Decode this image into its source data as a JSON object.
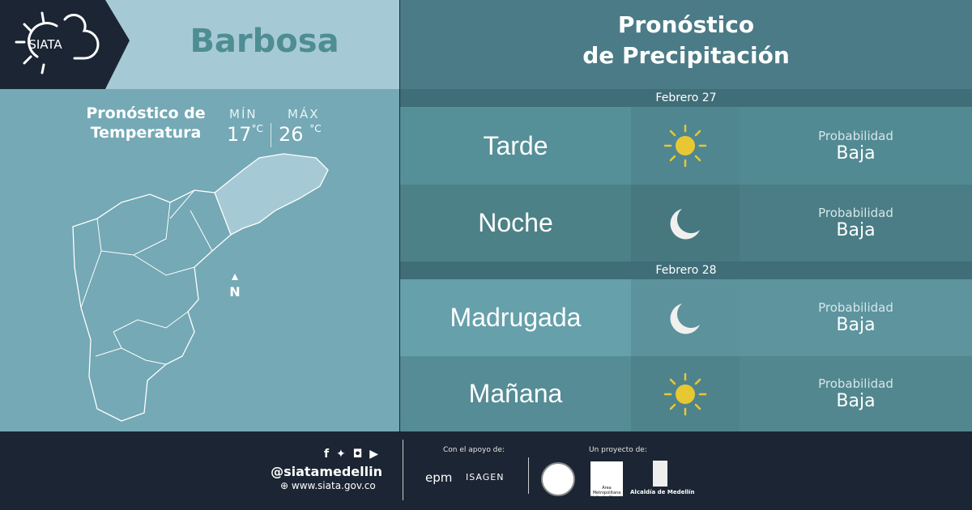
{
  "header": {
    "logo": "SIATA",
    "city": "Barbosa",
    "title_line1": "Pronóstico",
    "title_line2": "de Precipitación"
  },
  "temperature": {
    "title_line1": "Pronóstico de",
    "title_line2": "Temperatura",
    "min_label": "MÍN",
    "min_value": "17",
    "max_label": "MÁX",
    "max_value": "26",
    "unit": "°C"
  },
  "map": {
    "north_label": "N"
  },
  "forecast": [
    {
      "date": "Febrero 27",
      "periods": [
        {
          "period": "Tarde",
          "icon": "sun-icon",
          "prob_label": "Probabilidad",
          "prob_value": "Baja"
        },
        {
          "period": "Noche",
          "icon": "moon-icon",
          "prob_label": "Probabilidad",
          "prob_value": "Baja"
        }
      ]
    },
    {
      "date": "Febrero 28",
      "periods": [
        {
          "period": "Madrugada",
          "icon": "moon-icon",
          "prob_label": "Probabilidad",
          "prob_value": "Baja"
        },
        {
          "period": "Mañana",
          "icon": "sun-icon",
          "prob_label": "Probabilidad",
          "prob_value": "Baja"
        }
      ]
    }
  ],
  "colors": {
    "sun": "#e8c832",
    "moon": "#f0f0ee",
    "dark": "#1b2533"
  },
  "footer": {
    "handle": "@siatamedellin",
    "website": "www.siata.gov.co",
    "support_label": "Con el apoyo de:",
    "sponsor1": "epm",
    "sponsor2": "ISAGEN",
    "project_label": "Un proyecto de:",
    "partner1": "Área Metropolitana Valle de Aburrá",
    "partner2": "Alcaldía de Medellín"
  }
}
